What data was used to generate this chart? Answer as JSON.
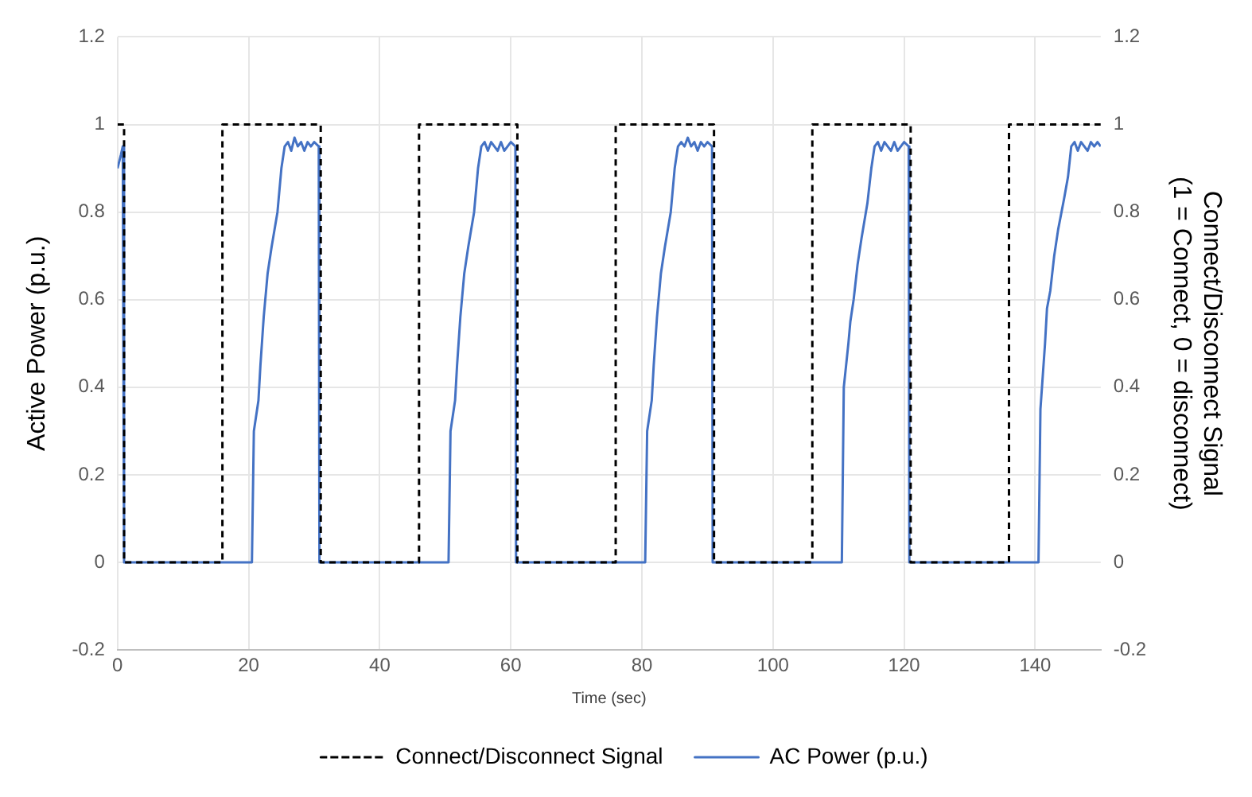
{
  "chart_data": {
    "type": "line",
    "xlabel": "Time (sec)",
    "ylabel": "Active Power (p.u.)",
    "y2label": "Connect/Disconnect Signal (1 = Connect, 0 = disconnect)",
    "xlim": [
      0,
      150
    ],
    "xticks": [
      0,
      20,
      40,
      60,
      80,
      100,
      120,
      140
    ],
    "ylim": [
      -0.2,
      1.2
    ],
    "yticks": [
      -0.2,
      0,
      0.2,
      0.4,
      0.6,
      0.8,
      1,
      1.2
    ],
    "y2lim": [
      -0.2,
      1.2
    ],
    "y2ticks": [
      -0.2,
      0,
      0.2,
      0.4,
      0.6,
      0.8,
      1,
      1.2
    ],
    "grid": true,
    "legend": "bottom",
    "marker": "none",
    "series": [
      {
        "name": "Connect/Disconnect Signal",
        "color": "#000000",
        "axis": "y2",
        "line_style": "dashed",
        "x": [
          0,
          1,
          1,
          16,
          16,
          31,
          31,
          46,
          46,
          61,
          61,
          76,
          76,
          91,
          91,
          106,
          106,
          121,
          121,
          136,
          136,
          150
        ],
        "values": [
          1,
          1,
          0,
          0,
          1,
          1,
          0,
          0,
          1,
          1,
          0,
          0,
          1,
          1,
          0,
          0,
          1,
          1,
          0,
          0,
          1,
          1
        ]
      },
      {
        "name": "AC Power (p.u.)",
        "color": "#4472c4",
        "line_style": "solid",
        "x": [
          0,
          0.5,
          0.8,
          1,
          20.5,
          20.8,
          21.5,
          21.8,
          22.3,
          22.9,
          23.5,
          24.4,
          25,
          25.5,
          26,
          26.5,
          27,
          27.5,
          28,
          28.5,
          29,
          29.5,
          30,
          30.7,
          30.8,
          50.5,
          50.8,
          51.5,
          51.8,
          52.3,
          52.9,
          53.5,
          54.4,
          55,
          55.5,
          56,
          56.5,
          57,
          57.5,
          58,
          58.5,
          59,
          59.5,
          60,
          60.7,
          60.8,
          80.5,
          80.8,
          81.5,
          81.8,
          82.3,
          82.9,
          83.5,
          84.4,
          85,
          85.5,
          86,
          86.5,
          87,
          87.5,
          88,
          88.5,
          89,
          89.5,
          90,
          90.7,
          90.8,
          110.5,
          110.8,
          111.5,
          111.8,
          112.3,
          112.9,
          113.5,
          114.4,
          115,
          115.5,
          116,
          116.5,
          117,
          117.5,
          118,
          118.5,
          119,
          119.5,
          120,
          120.7,
          120.8,
          140.5,
          140.8,
          141.5,
          141.8,
          142.3,
          142.9,
          143.5,
          144.4,
          145,
          145.5,
          146,
          146.5,
          147,
          147.5,
          148,
          148.5,
          149,
          149.5,
          150
        ],
        "values": [
          0.9,
          0.93,
          0.95,
          0,
          0,
          0.3,
          0.37,
          0.45,
          0.56,
          0.66,
          0.72,
          0.8,
          0.9,
          0.95,
          0.96,
          0.94,
          0.97,
          0.95,
          0.96,
          0.94,
          0.96,
          0.95,
          0.96,
          0.95,
          0,
          0,
          0.3,
          0.37,
          0.45,
          0.56,
          0.66,
          0.72,
          0.8,
          0.9,
          0.95,
          0.96,
          0.94,
          0.96,
          0.95,
          0.94,
          0.96,
          0.94,
          0.95,
          0.96,
          0.95,
          0,
          0,
          0.3,
          0.37,
          0.45,
          0.56,
          0.66,
          0.72,
          0.8,
          0.9,
          0.95,
          0.96,
          0.95,
          0.97,
          0.95,
          0.96,
          0.94,
          0.96,
          0.95,
          0.96,
          0.95,
          0,
          0,
          0.4,
          0.5,
          0.55,
          0.6,
          0.68,
          0.74,
          0.82,
          0.9,
          0.95,
          0.96,
          0.94,
          0.96,
          0.95,
          0.94,
          0.96,
          0.94,
          0.95,
          0.96,
          0.95,
          0,
          0,
          0.35,
          0.5,
          0.58,
          0.62,
          0.7,
          0.76,
          0.83,
          0.88,
          0.95,
          0.96,
          0.94,
          0.96,
          0.95,
          0.94,
          0.96,
          0.95,
          0.96,
          0.95
        ]
      }
    ]
  }
}
